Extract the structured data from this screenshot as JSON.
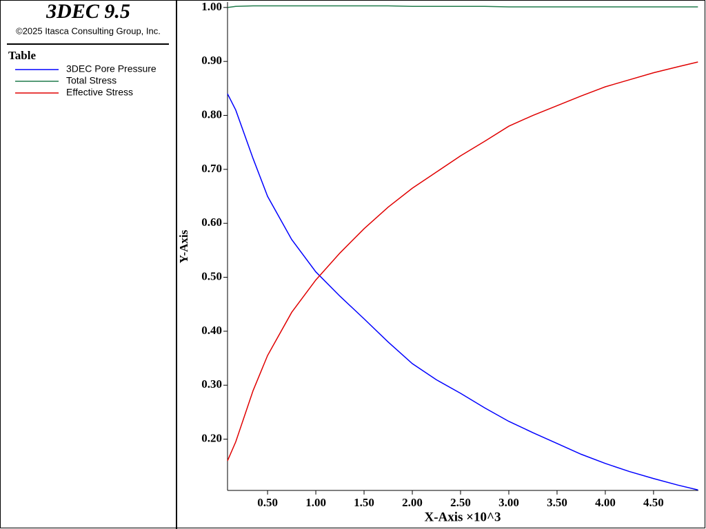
{
  "panel": {
    "title": "3DEC 9.5",
    "copyright": "©2025 Itasca Consulting Group, Inc.",
    "legend_title": "Table"
  },
  "chart_data": {
    "type": "line",
    "x_label": "X-Axis ×10^3",
    "y_label": "Y-Axis",
    "x": [
      0.085,
      0.17,
      0.35,
      0.5,
      0.75,
      1.0,
      1.25,
      1.5,
      1.75,
      2.0,
      2.25,
      2.5,
      2.75,
      3.0,
      3.25,
      3.5,
      3.75,
      4.0,
      4.25,
      4.5,
      4.75,
      4.96
    ],
    "series": [
      {
        "name": "3DEC Pore Pressure",
        "color": "#0000ff",
        "values": [
          0.84,
          0.81,
          0.72,
          0.65,
          0.57,
          0.51,
          0.465,
          0.423,
          0.38,
          0.34,
          0.31,
          0.285,
          0.258,
          0.233,
          0.212,
          0.192,
          0.172,
          0.155,
          0.14,
          0.127,
          0.115,
          0.106
        ]
      },
      {
        "name": "Total Stress",
        "color": "#1f7a4a",
        "values": [
          1.0,
          1.002,
          1.003,
          1.003,
          1.003,
          1.003,
          1.003,
          1.003,
          1.003,
          1.002,
          1.002,
          1.002,
          1.002,
          1.001,
          1.001,
          1.001,
          1.001,
          1.001,
          1.001,
          1.001,
          1.001,
          1.001
        ]
      },
      {
        "name": "Effective Stress",
        "color": "#e00000",
        "values": [
          0.16,
          0.195,
          0.29,
          0.355,
          0.435,
          0.495,
          0.545,
          0.59,
          0.63,
          0.665,
          0.695,
          0.725,
          0.752,
          0.78,
          0.8,
          0.818,
          0.836,
          0.853,
          0.866,
          0.879,
          0.89,
          0.899
        ]
      }
    ],
    "xlim": [
      0.085,
      4.965
    ],
    "ylim": [
      0.105,
      1.01
    ],
    "xticks": [
      {
        "value": 0.5,
        "label": "0.50"
      },
      {
        "value": 1.0,
        "label": "1.00"
      },
      {
        "value": 1.5,
        "label": "1.50"
      },
      {
        "value": 2.0,
        "label": "2.00"
      },
      {
        "value": 2.5,
        "label": "2.50"
      },
      {
        "value": 3.0,
        "label": "3.00"
      },
      {
        "value": 3.5,
        "label": "3.50"
      },
      {
        "value": 4.0,
        "label": "4.00"
      },
      {
        "value": 4.5,
        "label": "4.50"
      }
    ],
    "yticks": [
      {
        "value": 0.2,
        "label": "0.20"
      },
      {
        "value": 0.3,
        "label": "0.30"
      },
      {
        "value": 0.4,
        "label": "0.40"
      },
      {
        "value": 0.5,
        "label": "0.50"
      },
      {
        "value": 0.6,
        "label": "0.60"
      },
      {
        "value": 0.7,
        "label": "0.70"
      },
      {
        "value": 0.8,
        "label": "0.80"
      },
      {
        "value": 0.9,
        "label": "0.90"
      },
      {
        "value": 1.0,
        "label": "1.00"
      }
    ],
    "grid": false
  }
}
